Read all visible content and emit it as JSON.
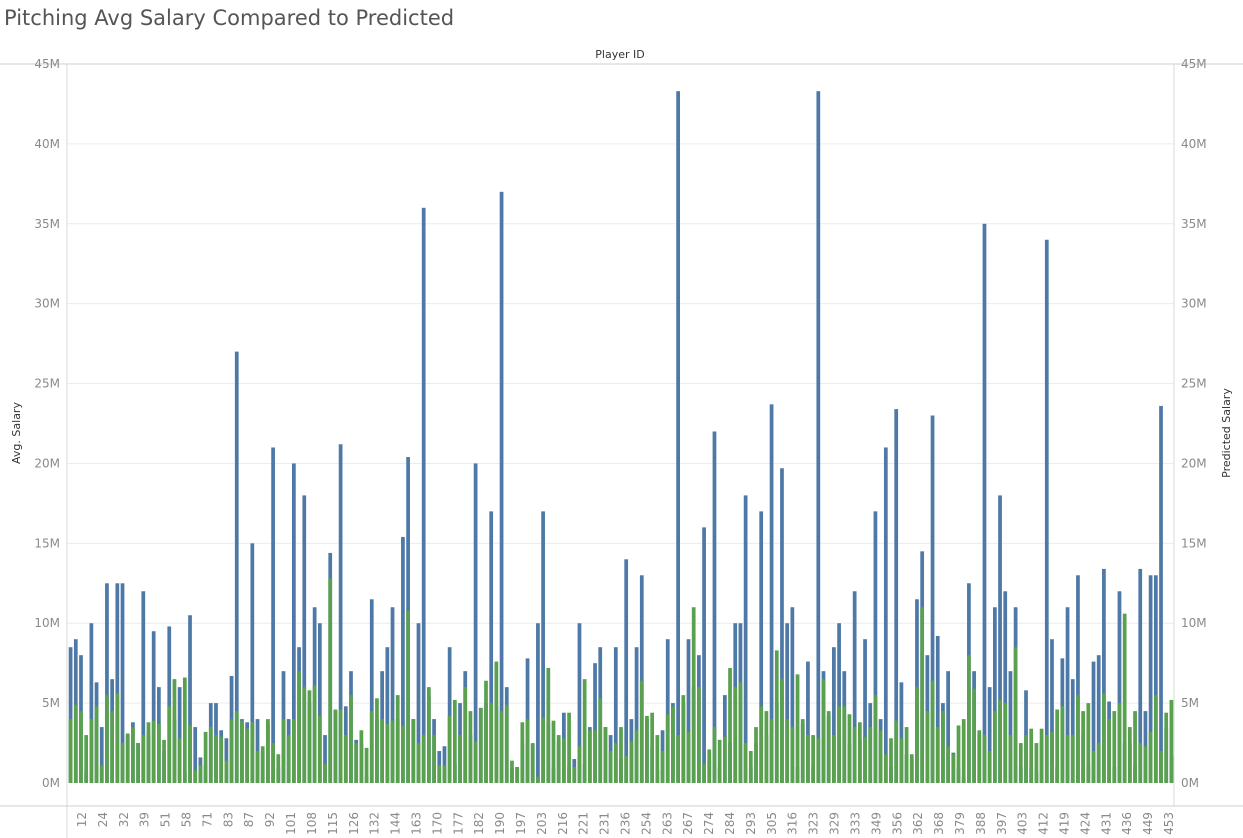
{
  "chart_data": {
    "type": "bar",
    "title": "Pitching Avg Salary Compared to Predicted",
    "xlabel": "Player ID",
    "ylabel": "Avg. Salary",
    "ylabel_right": "Predicted Salary",
    "ylim": [
      0,
      45000000
    ],
    "yticks": [
      "0M",
      "5M",
      "10M",
      "15M",
      "20M",
      "25M",
      "30M",
      "35M",
      "40M",
      "45M"
    ],
    "grid": true,
    "x_tick_labels": [
      "12",
      "24",
      "32",
      "39",
      "51",
      "58",
      "71",
      "83",
      "87",
      "92",
      "101",
      "108",
      "115",
      "126",
      "132",
      "144",
      "163",
      "170",
      "177",
      "182",
      "190",
      "197",
      "203",
      "216",
      "221",
      "231",
      "236",
      "254",
      "263",
      "267",
      "274",
      "284",
      "293",
      "305",
      "316",
      "323",
      "329",
      "333",
      "349",
      "356",
      "362",
      "368",
      "379",
      "388",
      "397",
      "403",
      "412",
      "419",
      "424",
      "431",
      "436",
      "449",
      "453"
    ],
    "series": [
      {
        "name": "Avg. Salary",
        "color": "#4e79a7",
        "values": [
          8.5,
          9.0,
          8.0,
          0.7,
          10.0,
          6.3,
          3.5,
          12.5,
          6.5,
          12.5,
          12.5,
          3.0,
          3.8,
          2.5,
          12.0,
          3.0,
          9.5,
          6.0,
          2.0,
          9.8,
          4.0,
          6.0,
          0.7,
          10.5,
          3.5,
          1.6,
          1.1,
          5.0,
          5.0,
          3.3,
          2.8,
          6.7,
          27.0,
          4.0,
          3.8,
          15.0,
          4.0,
          2.0,
          3.7,
          21.0,
          1.0,
          7.0,
          4.0,
          20.0,
          8.5,
          18.0,
          5.0,
          11.0,
          10.0,
          3.0,
          14.4,
          4.5,
          21.2,
          4.8,
          7.0,
          2.7,
          2.5,
          0.4,
          11.5,
          4.0,
          7.0,
          8.5,
          11.0,
          4.0,
          15.4,
          20.4,
          4.0,
          10.0,
          36.0,
          5.5,
          4.0,
          2.0,
          2.3,
          8.5,
          1.2,
          5.0,
          7.0,
          3.0,
          20.0,
          4.7,
          5.0,
          17.0,
          4.8,
          37.0,
          6.0,
          0.9,
          1.0,
          2.5,
          7.8,
          2.4,
          10.0,
          17.0,
          3.7,
          1.0,
          2.6,
          4.4,
          1.0,
          1.5,
          10.0,
          1.2,
          3.5,
          7.5,
          8.5,
          3.5,
          3.0,
          8.5,
          1.5,
          14.0,
          4.0,
          8.5,
          13.0,
          4.0,
          2.2,
          0.8,
          3.3,
          9.0,
          5.0,
          43.3,
          5.0,
          9.0,
          6.0,
          8.0,
          16.0,
          1.4,
          22.0,
          1.0,
          5.5,
          2.5,
          10.0,
          10.0,
          18.0,
          1.0,
          2.5,
          17.0,
          3.0,
          23.7,
          5.0,
          19.7,
          10.0,
          11.0,
          1.0,
          3.7,
          7.6,
          1.0,
          43.3,
          7.0,
          4.2,
          8.5,
          10.0,
          7.0,
          2.5,
          12.0,
          2.7,
          9.0,
          5.0,
          17.0,
          4.0,
          21.0,
          1.0,
          23.4,
          6.3,
          1.8,
          1.5,
          11.5,
          14.5,
          8.0,
          23.0,
          9.2,
          5.0,
          7.0,
          1.9,
          1.0,
          0.4,
          12.5,
          7.0,
          3.0,
          35.0,
          6.0,
          11.0,
          18.0,
          12.0,
          7.0,
          11.0,
          1.0,
          5.8,
          1.0,
          0.7,
          2.6,
          34.0,
          9.0,
          1.0,
          7.8,
          11.0,
          6.5,
          13.0,
          3.0,
          1.1,
          7.6,
          8.0,
          13.4,
          5.1,
          1.0,
          12.0,
          2.5,
          2.5,
          1.1,
          13.4,
          4.5,
          13.0,
          13.0,
          23.6,
          3.4,
          1.7
        ]
      },
      {
        "name": "Predicted Salary",
        "color": "#59a14f",
        "values": [
          4.0,
          4.9,
          4.5,
          3.0,
          4.0,
          4.8,
          1.1,
          5.5,
          4.5,
          5.6,
          2.5,
          3.1,
          3.5,
          2.5,
          3.0,
          3.8,
          3.9,
          3.7,
          2.7,
          4.8,
          6.5,
          2.8,
          6.6,
          3.6,
          0.8,
          1.1,
          3.2,
          3.5,
          3.0,
          2.9,
          1.4,
          4.0,
          4.5,
          3.9,
          3.4,
          3.8,
          2.0,
          2.3,
          4.0,
          2.5,
          1.8,
          4.0,
          3.0,
          4.0,
          7.0,
          6.0,
          5.8,
          6.1,
          4.2,
          1.2,
          12.8,
          4.6,
          4.6,
          3.0,
          5.5,
          2.5,
          3.3,
          2.2,
          4.5,
          5.3,
          4.0,
          3.7,
          3.9,
          5.5,
          3.6,
          10.8,
          4.0,
          2.5,
          3.0,
          6.0,
          3.0,
          1.1,
          1.1,
          4.2,
          5.2,
          3.0,
          6.0,
          4.5,
          2.6,
          4.7,
          6.4,
          5.0,
          7.6,
          4.5,
          4.9,
          1.4,
          1.0,
          3.8,
          4.0,
          2.5,
          0.4,
          4.1,
          7.2,
          3.9,
          3.0,
          2.8,
          4.4,
          1.0,
          2.3,
          6.5,
          3.3,
          3.3,
          5.3,
          3.5,
          2.0,
          2.5,
          3.5,
          1.7,
          2.6,
          3.3,
          6.4,
          4.2,
          4.4,
          3.0,
          2.0,
          4.3,
          4.8,
          3.0,
          5.5,
          3.2,
          11.0,
          6.0,
          1.2,
          2.1,
          3.5,
          2.7,
          2.9,
          7.2,
          6.0,
          6.3,
          2.5,
          2.0,
          3.5,
          4.8,
          4.5,
          4.0,
          8.3,
          6.5,
          4.0,
          3.5,
          6.8,
          4.0,
          3.0,
          3.0,
          2.8,
          6.5,
          4.5,
          3.0,
          4.8,
          4.8,
          4.3,
          3.5,
          3.8,
          2.9,
          3.5,
          5.5,
          3.3,
          1.8,
          2.8,
          3.9,
          2.8,
          3.5,
          1.8,
          6.0,
          11.0,
          4.5,
          6.4,
          3.5,
          4.5,
          2.3,
          1.8,
          3.6,
          4.0,
          8.0,
          5.9,
          3.3,
          3.0,
          2.0,
          4.5,
          5.2,
          5.0,
          3.0,
          8.5,
          2.5,
          3.0,
          3.4,
          2.5,
          3.4,
          3.0,
          3.2,
          4.6,
          4.8,
          3.0,
          3.0,
          5.5,
          4.5,
          5.0,
          2.0,
          2.5,
          5.6,
          4.0,
          4.5,
          5.0,
          10.6,
          3.5,
          4.5,
          2.5,
          2.3,
          3.2,
          5.5,
          2.0,
          4.4,
          5.2,
          3.2,
          3.4,
          2.0,
          1.6
        ]
      }
    ]
  }
}
